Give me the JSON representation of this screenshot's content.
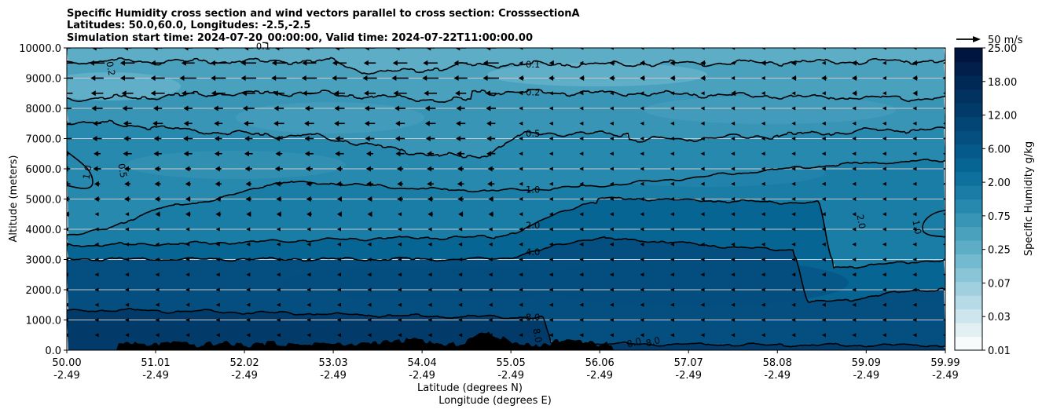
{
  "chart_data": {
    "type": "contour",
    "title_lines": [
      "Specific Humidity cross section and wind vectors parallel to cross section: CrosssectionA",
      "Latitudes: 50.0,60.0, Longitudes: -2.5,-2.5",
      "Simulation start time: 2024-07-20_00:00:00, Valid time: 2024-07-22T11:00:00.00"
    ],
    "ylabel": "Altitude (meters)",
    "xlabel_lat": "Latitude (degrees N)",
    "xlabel_lon": "Longitude (degrees E)",
    "ylim": [
      0,
      10000
    ],
    "xlim": [
      50.0,
      59.99
    ],
    "y_ticks": [
      "0.0",
      "1000.0",
      "2000.0",
      "3000.0",
      "4000.0",
      "5000.0",
      "6000.0",
      "7000.0",
      "8000.0",
      "9000.0",
      "10000.0"
    ],
    "y_tick_values": [
      0,
      1000,
      2000,
      3000,
      4000,
      5000,
      6000,
      7000,
      8000,
      9000,
      10000
    ],
    "x_ticks": [
      {
        "lat": "50.00",
        "lon": "-2.49"
      },
      {
        "lat": "51.01",
        "lon": "-2.49"
      },
      {
        "lat": "52.02",
        "lon": "-2.49"
      },
      {
        "lat": "53.03",
        "lon": "-2.49"
      },
      {
        "lat": "54.04",
        "lon": "-2.49"
      },
      {
        "lat": "55.05",
        "lon": "-2.49"
      },
      {
        "lat": "56.06",
        "lon": "-2.49"
      },
      {
        "lat": "57.07",
        "lon": "-2.49"
      },
      {
        "lat": "58.08",
        "lon": "-2.49"
      },
      {
        "lat": "59.09",
        "lon": "-2.49"
      },
      {
        "lat": "59.99",
        "lon": "-2.49"
      }
    ],
    "colorbar": {
      "label": "Specific Humidity g/kg",
      "levels": [
        "0.01",
        "0.03",
        "0.07",
        "0.25",
        "0.75",
        "2.00",
        "6.00",
        "12.00",
        "18.00",
        "25.00"
      ],
      "colors": [
        "#f7fbfc",
        "#e2f0f4",
        "#cde6ee",
        "#b6dbe6",
        "#a0d0df",
        "#89c4d7",
        "#73b9cf",
        "#5eadc7",
        "#4aa1be",
        "#3895b6",
        "#2889ae",
        "#1a7da6",
        "#0e719d",
        "#076593",
        "#055a89",
        "#044f7f",
        "#034575",
        "#023b6a",
        "#023260",
        "#012955",
        "#011f4a",
        "#00163f"
      ]
    },
    "contours": [
      {
        "level": 0.1,
        "label": "0.1",
        "label_lat": 55.05,
        "label_alt": 9400
      },
      {
        "level": 0.2,
        "label": "0.2",
        "label_lat": 55.05,
        "label_alt": 8500
      },
      {
        "level": 0.5,
        "label": "0.5",
        "label_lat": 55.05,
        "label_alt": 6350
      },
      {
        "level": 1.0,
        "label": "1.0",
        "label_lat": 55.05,
        "label_alt": 5350
      },
      {
        "level": 2.0,
        "label": "2.0",
        "label_lat": 55.05,
        "label_alt": 3800
      },
      {
        "level": 4.0,
        "label": "4.0",
        "label_lat": 55.05,
        "label_alt": 2950
      },
      {
        "level": 8.0,
        "label": "8.0",
        "label_lat": 55.05,
        "label_alt": 1300
      }
    ],
    "extra_contour_labels": [
      "0.2",
      "1.0",
      "0.5",
      "2.0",
      "1.0",
      "8.0",
      "8.0",
      "8.0",
      "0.1"
    ],
    "wind_reference": {
      "label": "50 m/s",
      "speed": 50
    },
    "wind_vectors": {
      "rows_alt": [
        10000,
        9500,
        9000,
        8500,
        8000,
        7500,
        7000,
        6500,
        6000,
        5500,
        5000,
        4500,
        4000,
        3500,
        3000,
        2500,
        2000,
        1500,
        1000,
        500
      ],
      "row_speed_west": [
        12,
        18,
        19,
        16,
        13,
        12,
        11,
        10,
        9,
        8,
        7,
        6,
        5,
        4,
        3,
        3,
        2,
        2,
        2,
        1
      ],
      "strong_until_lat": 55.05
    }
  },
  "colorbar_ticks_display": [
    "25.00",
    "18.00",
    "12.00",
    "6.00",
    "2.00",
    "0.75",
    "0.25",
    "0.07",
    "0.03",
    "0.01"
  ]
}
